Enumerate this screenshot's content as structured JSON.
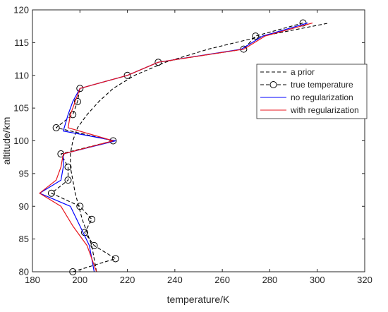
{
  "chart_data": {
    "type": "line",
    "title": "",
    "xlabel": "temperature/K",
    "ylabel": "altitude/km",
    "xlim": [
      180,
      320
    ],
    "ylim": [
      80,
      120
    ],
    "xticks": [
      180,
      200,
      220,
      240,
      260,
      280,
      300,
      320
    ],
    "yticks": [
      80,
      85,
      90,
      95,
      100,
      105,
      110,
      115,
      120
    ],
    "grid": false,
    "legend_position": "top-right",
    "series": [
      {
        "name": "a prior",
        "color": "#000000",
        "style": "dashed",
        "marker": "none",
        "points": [
          [
            207,
            80
          ],
          [
            205,
            84
          ],
          [
            201,
            88
          ],
          [
            198,
            92
          ],
          [
            196,
            96
          ],
          [
            196,
            98
          ],
          [
            197,
            100
          ],
          [
            199,
            102
          ],
          [
            203,
            104
          ],
          [
            208,
            106
          ],
          [
            214,
            108
          ],
          [
            223,
            110
          ],
          [
            236,
            112
          ],
          [
            254,
            114
          ],
          [
            277,
            116
          ],
          [
            305,
            118
          ]
        ]
      },
      {
        "name": "true temperature",
        "color": "#000000",
        "style": "dashed",
        "marker": "circle",
        "points": [
          [
            197,
            80
          ],
          [
            215,
            82
          ],
          [
            206,
            84
          ],
          [
            202,
            86
          ],
          [
            205,
            88
          ],
          [
            200,
            90
          ],
          [
            188,
            92
          ],
          [
            195,
            94
          ],
          [
            195,
            96
          ],
          [
            192,
            98
          ],
          [
            214,
            100
          ],
          [
            190,
            102
          ],
          [
            197,
            104
          ],
          [
            199,
            106
          ],
          [
            200,
            108
          ],
          [
            220,
            110
          ],
          [
            233,
            112
          ],
          [
            269,
            114
          ],
          [
            274,
            116
          ],
          [
            294,
            118
          ]
        ]
      },
      {
        "name": "no regularization",
        "color": "#0000ff",
        "style": "solid",
        "marker": "none",
        "points": [
          [
            206,
            80
          ],
          [
            204,
            84
          ],
          [
            200,
            87
          ],
          [
            196,
            90
          ],
          [
            183,
            92
          ],
          [
            192,
            94
          ],
          [
            193,
            96
          ],
          [
            193,
            98
          ],
          [
            215,
            100
          ],
          [
            193,
            101.5
          ],
          [
            195,
            104
          ],
          [
            197,
            106
          ],
          [
            200,
            108
          ],
          [
            220,
            110
          ],
          [
            233,
            112
          ],
          [
            268,
            114
          ],
          [
            277,
            116
          ],
          [
            296,
            118
          ]
        ]
      },
      {
        "name": "with regularization",
        "color": "#e8141c",
        "style": "solid",
        "marker": "none",
        "points": [
          [
            207,
            80
          ],
          [
            203,
            84
          ],
          [
            197,
            87
          ],
          [
            192,
            90
          ],
          [
            183,
            92
          ],
          [
            190,
            94
          ],
          [
            192,
            96
          ],
          [
            193,
            98
          ],
          [
            214,
            100
          ],
          [
            195,
            102
          ],
          [
            196,
            104
          ],
          [
            198,
            106
          ],
          [
            200,
            108
          ],
          [
            220,
            110
          ],
          [
            233,
            112
          ],
          [
            269,
            114
          ],
          [
            278,
            116
          ],
          [
            298,
            118
          ]
        ]
      }
    ]
  }
}
